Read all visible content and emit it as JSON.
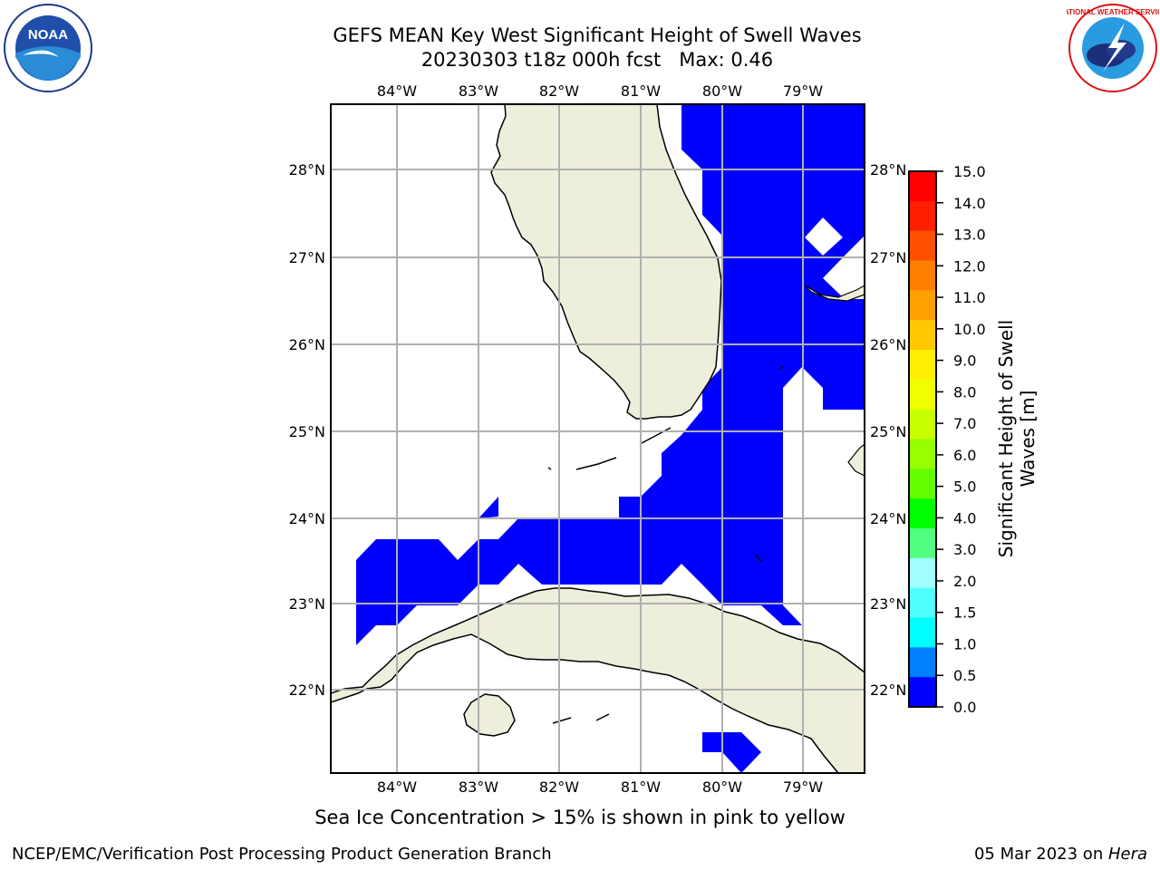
{
  "title": {
    "line1": "GEFS MEAN Key West Significant Height of Swell Waves",
    "line2": "20230303 t18z 000h fcst   Max: 0.46"
  },
  "map": {
    "lon_labels": [
      "84°W",
      "83°W",
      "82°W",
      "81°W",
      "80°W",
      "79°W"
    ],
    "lat_labels": [
      "28°N",
      "27°N",
      "26°N",
      "25°N",
      "24°N",
      "23°N",
      "22°N"
    ],
    "land_color": "#eeeedc",
    "swell_color": "#0000ff",
    "grid_color": "#b0b0b0"
  },
  "colorbar": {
    "label_line1": "Significant Height of Swell",
    "label_line2": "Waves [m]",
    "ticks": [
      "15.0",
      "14.0",
      "13.0",
      "12.0",
      "11.0",
      "10.0",
      "9.0",
      "8.0",
      "7.0",
      "6.0",
      "5.0",
      "4.0",
      "3.0",
      "2.0",
      "1.5",
      "1.0",
      "0.5",
      "0.0"
    ],
    "colors_top_to_bottom": [
      "#ff0000",
      "#ff2000",
      "#ff5000",
      "#ff8000",
      "#ffa000",
      "#ffc800",
      "#ffef00",
      "#f0ff00",
      "#c8ff00",
      "#96ff00",
      "#64ff00",
      "#00ff00",
      "#50ff80",
      "#a0ffff",
      "#50ffff",
      "#00ffff",
      "#0080ff",
      "#0000ff"
    ]
  },
  "bottom_note": "Sea Ice Concentration > 15% is shown in pink to yellow",
  "footer": {
    "left": "NCEP/EMC/Verification Post Processing Product Generation Branch",
    "right_date": "05 Mar 2023 on ",
    "right_host": "Hera"
  },
  "logos": {
    "noaa_text": "NOAA",
    "nws_text": "NATIONAL WEATHER SERVICE"
  }
}
